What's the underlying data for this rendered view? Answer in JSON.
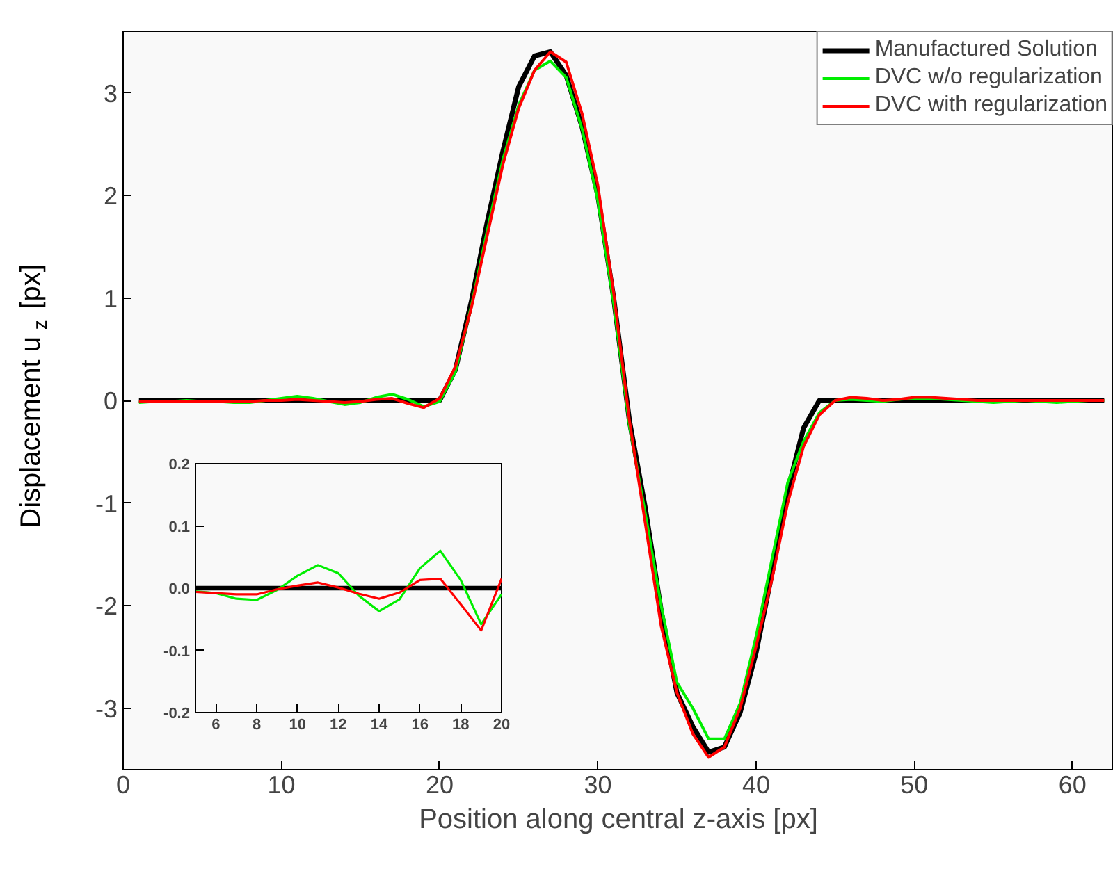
{
  "chart_data": [
    {
      "type": "line",
      "xlabel": "Position along central z-axis [px]",
      "ylabel": "Displacement u$_{z}$ [px]",
      "legend": "top right",
      "grid": false,
      "line_style": "solid",
      "xlim": [
        0,
        62.6
      ],
      "ylim": [
        -3.6,
        3.6
      ],
      "xticks": [
        0,
        10,
        20,
        30,
        40,
        50,
        60
      ],
      "yticks": [
        -3,
        -2,
        -1,
        0,
        1,
        2,
        3
      ],
      "x": [
        1,
        2,
        3,
        4,
        5,
        6,
        7,
        8,
        9,
        10,
        11,
        12,
        13,
        14,
        15,
        16,
        17,
        18,
        19,
        20,
        21,
        22,
        23,
        24,
        25,
        26,
        27,
        28,
        29,
        30,
        31,
        32,
        33,
        34,
        35,
        36,
        37,
        38,
        39,
        40,
        41,
        42,
        43,
        44,
        45,
        46,
        47,
        48,
        49,
        50,
        51,
        52,
        53,
        54,
        55,
        56,
        57,
        58,
        59,
        60,
        61,
        62
      ],
      "series": [
        {
          "name": "Manufactured Solution",
          "color": "#000000",
          "values": [
            0,
            0,
            0,
            0,
            0,
            0,
            0,
            0,
            0,
            0,
            0,
            0,
            0,
            0,
            0,
            0,
            0,
            0,
            0,
            0,
            0.3,
            0.96,
            1.73,
            2.43,
            3.06,
            3.36,
            3.4,
            3.17,
            2.67,
            2.0,
            1.0,
            -0.2,
            -1.05,
            -2.05,
            -2.85,
            -3.18,
            -3.43,
            -3.38,
            -3.04,
            -2.46,
            -1.69,
            -0.88,
            -0.27,
            0,
            0,
            0,
            0,
            0,
            0,
            0,
            0,
            0,
            0,
            0,
            0,
            0,
            0,
            0,
            0,
            0,
            0,
            0
          ]
        },
        {
          "name": "DVC w/o regularization",
          "color": "#00ee00",
          "values": [
            -0.02,
            -0.01,
            -0.01,
            0,
            -0.01,
            -0.01,
            -0.02,
            -0.02,
            0,
            0.02,
            0.04,
            0.02,
            -0.01,
            -0.04,
            -0.02,
            0.03,
            0.06,
            0.01,
            -0.06,
            -0.01,
            0.28,
            0.92,
            1.65,
            2.35,
            2.88,
            3.22,
            3.31,
            3.15,
            2.65,
            1.95,
            0.95,
            -0.25,
            -1.1,
            -2.0,
            -2.75,
            -3.0,
            -3.3,
            -3.3,
            -2.95,
            -2.3,
            -1.55,
            -0.8,
            -0.4,
            -0.12,
            0.0,
            0.01,
            0.0,
            -0.01,
            0.01,
            0.02,
            0.02,
            0.01,
            0.0,
            -0.01,
            -0.02,
            -0.01,
            0.0,
            -0.01,
            -0.02,
            -0.01,
            0.0,
            0.0
          ]
        },
        {
          "name": "DVC with regularization",
          "color": "#ff0000",
          "values": [
            -0.01,
            -0.01,
            -0.01,
            -0.01,
            -0.01,
            -0.01,
            -0.01,
            -0.01,
            0,
            0,
            0.01,
            0,
            -0.01,
            -0.02,
            -0.01,
            0.01,
            0.02,
            -0.03,
            -0.07,
            0.02,
            0.33,
            0.9,
            1.6,
            2.3,
            2.85,
            3.22,
            3.4,
            3.3,
            2.8,
            2.1,
            1.05,
            -0.2,
            -1.2,
            -2.2,
            -2.85,
            -3.25,
            -3.48,
            -3.38,
            -3.0,
            -2.4,
            -1.75,
            -1.0,
            -0.45,
            -0.14,
            0.0,
            0.03,
            0.02,
            0.0,
            0.01,
            0.03,
            0.03,
            0.02,
            0.01,
            0.0,
            0.0,
            0.0,
            0.0,
            0.0,
            0.0,
            0.0,
            0.0,
            0.0
          ]
        }
      ]
    },
    {
      "type": "line",
      "grid": false,
      "line_style": "solid",
      "xlim": [
        5,
        20
      ],
      "ylim": [
        -0.2,
        0.2
      ],
      "xticks": [
        6,
        8,
        10,
        12,
        14,
        16,
        18,
        20
      ],
      "yticks": [
        {
          "value": -0.2,
          "label": "-0.2"
        },
        {
          "value": -0.1,
          "label": "-0.1"
        },
        {
          "value": 0,
          "label": "0.0"
        },
        {
          "value": 0.1,
          "label": "0.1"
        },
        {
          "value": 0.2,
          "label": "0.2"
        }
      ],
      "x": [
        5,
        6,
        7,
        8,
        9,
        10,
        11,
        12,
        13,
        14,
        15,
        16,
        17,
        18,
        19,
        20
      ],
      "series": [
        {
          "color": "#000000",
          "values": [
            0,
            0,
            0,
            0,
            0,
            0,
            0,
            0,
            0,
            0,
            0,
            0,
            0,
            0,
            0,
            0
          ]
        },
        {
          "color": "#00ee00",
          "values": [
            -0.005,
            -0.008,
            -0.017,
            -0.019,
            -0.003,
            0.02,
            0.037,
            0.024,
            -0.012,
            -0.037,
            -0.018,
            0.032,
            0.06,
            0.013,
            -0.058,
            -0.01
          ]
        },
        {
          "color": "#ff0000",
          "values": [
            -0.006,
            -0.008,
            -0.01,
            -0.01,
            -0.002,
            0.004,
            0.009,
            0.001,
            -0.009,
            -0.017,
            -0.007,
            0.013,
            0.015,
            -0.026,
            -0.068,
            0.015
          ]
        }
      ]
    }
  ]
}
